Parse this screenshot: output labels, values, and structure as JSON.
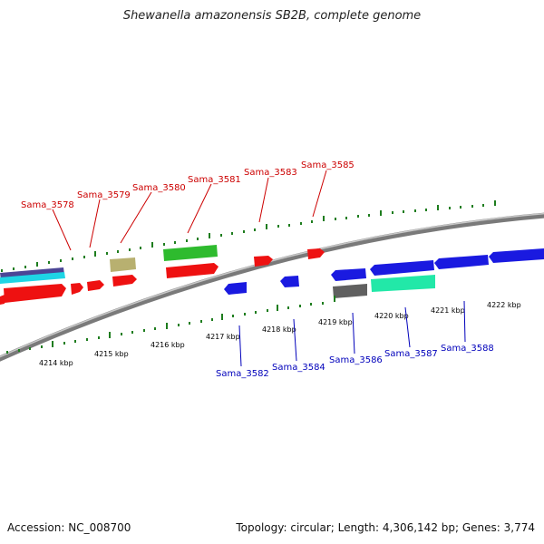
{
  "title": "Shewanella amazonensis SB2B, complete genome",
  "footer": {
    "accession": "Accession: NC_008700",
    "summary": "Topology: circular; Length: 4,306,142 bp; Genes: 3,774"
  },
  "colors": {
    "backbone": "#888888",
    "tick": "#1e7d1e",
    "forward_label": "#cc0000",
    "reverse_label": "#0000bb"
  },
  "kbp_labels": [
    "4214 kbp",
    "4215 kbp",
    "4216 kbp",
    "4217 kbp",
    "4218 kbp",
    "4219 kbp",
    "4220 kbp",
    "4221 kbp",
    "4222 kbp"
  ],
  "forward_gene_labels": [
    "Sama_3578",
    "Sama_3579",
    "Sama_3580",
    "Sama_3581",
    "Sama_3583",
    "Sama_3585"
  ],
  "reverse_gene_labels": [
    "Sama_3582",
    "Sama_3584",
    "Sama_3586",
    "Sama_3587",
    "Sama_3588"
  ]
}
